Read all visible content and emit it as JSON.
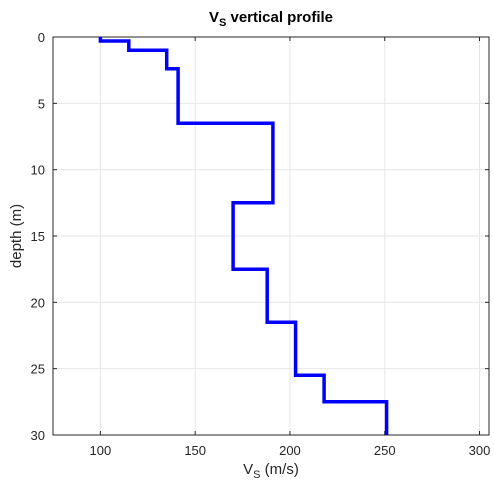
{
  "chart_data": {
    "type": "line",
    "title": {
      "main": "V",
      "sub": "S",
      "rest": " vertical profile"
    },
    "xlabel": {
      "main": "V",
      "sub": "S",
      "rest": " (m/s)"
    },
    "ylabel": "depth (m)",
    "xlim": [
      75,
      305
    ],
    "ylim": [
      0,
      30
    ],
    "y_reversed": true,
    "grid": true,
    "x_ticks": [
      100,
      150,
      200,
      250,
      300
    ],
    "y_ticks": [
      0,
      5,
      10,
      15,
      20,
      25,
      30
    ],
    "series": [
      {
        "color": "#0000ff",
        "x": [
          100,
          100,
          115,
          115,
          135,
          135,
          141,
          141,
          191,
          191,
          170,
          170,
          188,
          188,
          203,
          203,
          218,
          218,
          251,
          251
        ],
        "y": [
          0,
          0.3,
          0.3,
          1.0,
          1.0,
          2.4,
          2.4,
          6.5,
          6.5,
          12.5,
          12.5,
          17.5,
          17.5,
          21.5,
          21.5,
          25.5,
          25.5,
          27.5,
          27.5,
          30
        ]
      }
    ]
  }
}
